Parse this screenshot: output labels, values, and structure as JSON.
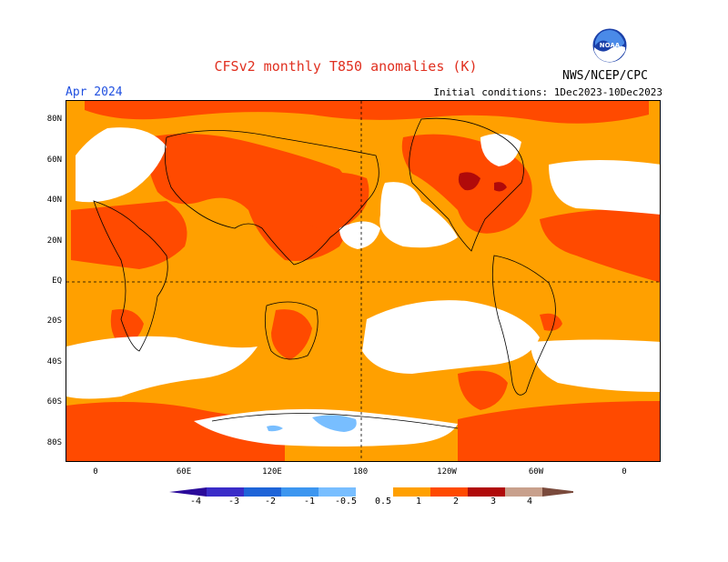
{
  "title": "CFSv2 monthly T850 anomalies (K)",
  "valid_month": "Apr 2024",
  "initial_conditions": "Initial conditions: 1Dec2023-10Dec2023",
  "agency": "NWS/NCEP/CPC",
  "logo_icon": "noaa-logo-icon",
  "lat_labels": [
    "80N",
    "60N",
    "40N",
    "20N",
    "EQ",
    "20S",
    "40S",
    "60S",
    "80S"
  ],
  "lon_labels": [
    "0",
    "60E",
    "120E",
    "180",
    "120W",
    "60W",
    "0"
  ],
  "colorbar": {
    "labels": [
      "-4",
      "-3",
      "-2",
      "-1",
      "-0.5",
      "0.5",
      "1",
      "2",
      "3",
      "4"
    ],
    "colors": [
      "#2a0a9a",
      "#3a2cc8",
      "#1e64d8",
      "#3c96f0",
      "#78beff",
      "#ffffff",
      "#ffa000",
      "#ff4a00",
      "#b00a0a",
      "#c8a08c",
      "#7a4a3c"
    ]
  },
  "colors": {
    "orange": "#ffa000",
    "red_orange": "#ff4a00",
    "dark_red": "#b00a0a",
    "light_blue": "#78beff",
    "white": "#ffffff"
  }
}
